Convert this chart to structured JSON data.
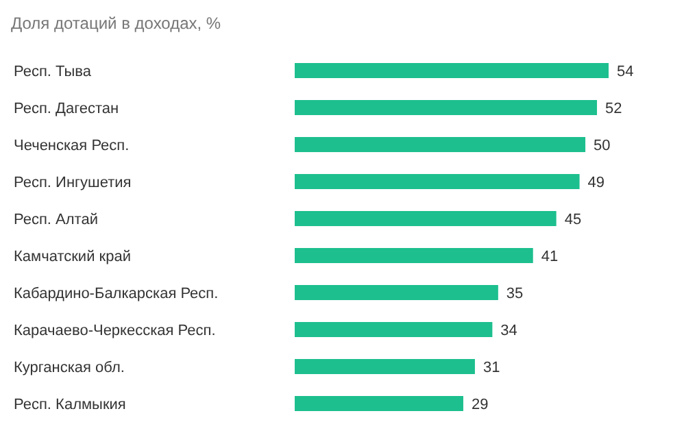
{
  "chart_data": {
    "type": "bar",
    "orientation": "horizontal",
    "title": "Доля дотаций в доходах, %",
    "categories": [
      "Респ. Тыва",
      "Респ. Дагестан",
      "Чеченская Респ.",
      "Респ. Ингушетия",
      "Респ. Алтай",
      "Камчатский край",
      "Кабардино-Балкарская Респ.",
      "Карачаево-Черкесская Респ.",
      "Курганская обл.",
      "Респ. Калмыкия"
    ],
    "values": [
      54,
      52,
      50,
      49,
      45,
      41,
      35,
      34,
      31,
      29
    ],
    "color": "#1dbf8e",
    "data_labels": true
  }
}
